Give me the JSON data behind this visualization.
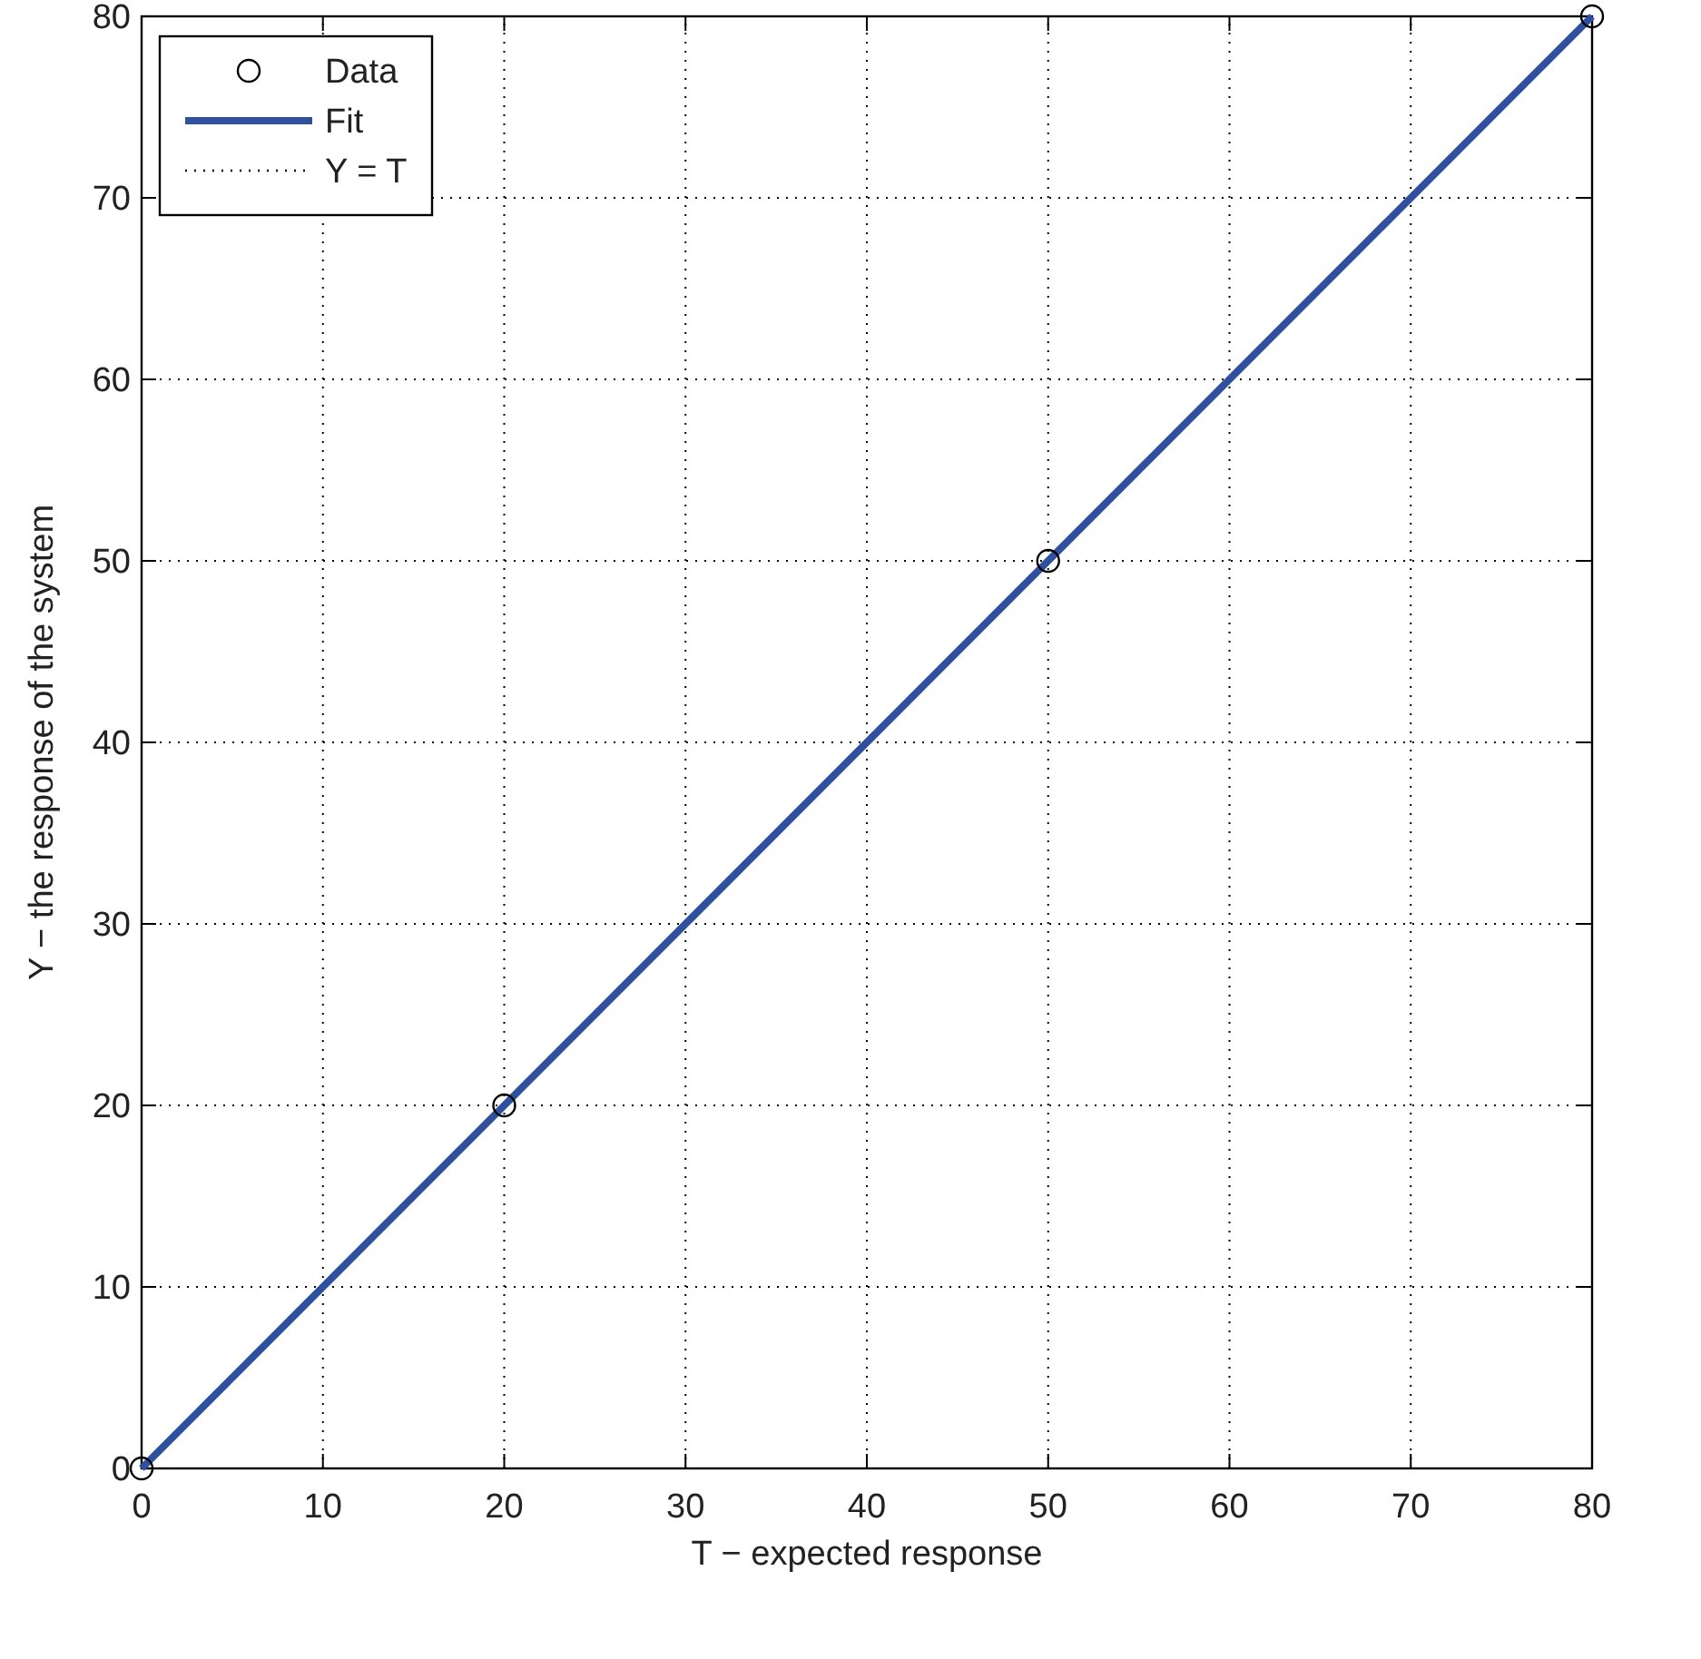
{
  "chart_data": {
    "type": "scatter",
    "xlabel": "T − expected response",
    "ylabel": "Y − the response of the system",
    "xlim": [
      0,
      80
    ],
    "ylim": [
      0,
      80
    ],
    "xticks": [
      0,
      10,
      20,
      30,
      40,
      50,
      60,
      70,
      80
    ],
    "yticks": [
      0,
      10,
      20,
      30,
      40,
      50,
      60,
      70,
      80
    ],
    "grid": true,
    "legend": "top left",
    "series": [
      {
        "name": "Data",
        "marker": "circle",
        "color": "#000000",
        "x": [
          0,
          20,
          50,
          80
        ],
        "values": [
          0,
          20,
          50,
          80
        ]
      },
      {
        "name": "Fit",
        "type": "line",
        "line_style": "solid",
        "color": "#2f4f9f",
        "x": [
          0,
          80
        ],
        "values": [
          0,
          80
        ]
      },
      {
        "name": "Y = T",
        "type": "line",
        "line_style": "dotted",
        "color": "#000000"
      }
    ]
  }
}
